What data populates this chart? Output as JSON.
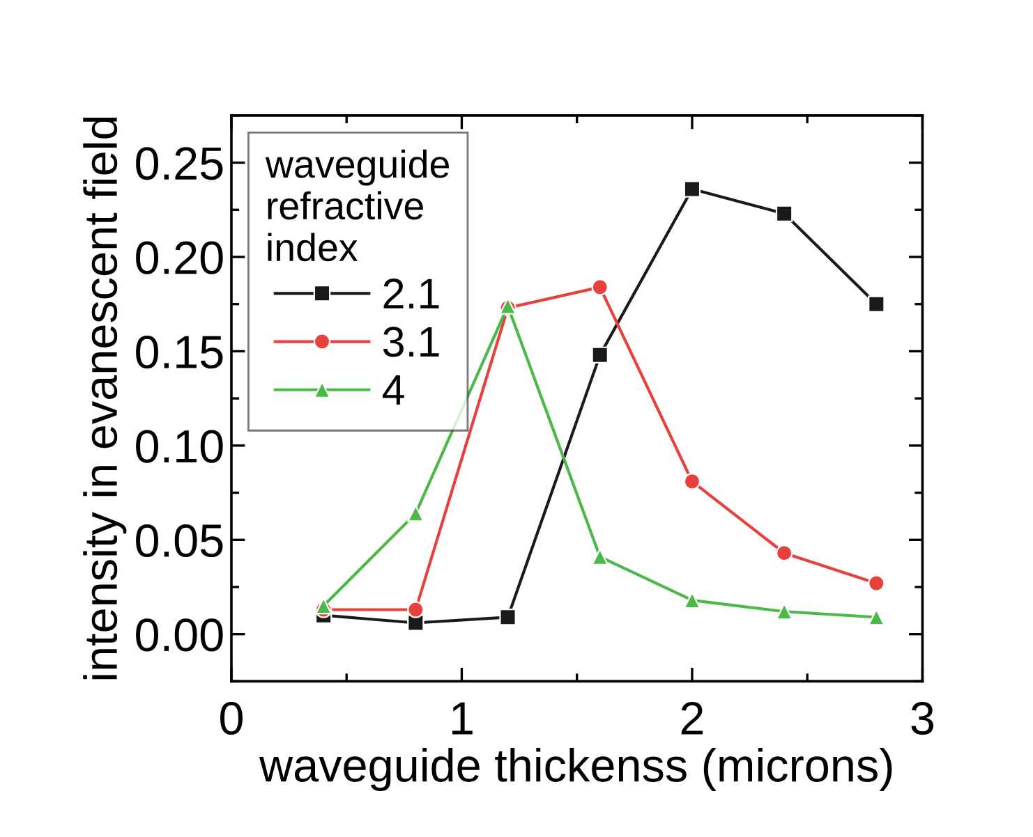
{
  "chart_data": {
    "type": "line",
    "xlabel": "waveguide thickenss (microns)",
    "ylabel": "intensity in evanescent field",
    "legend_title": "waveguide\nrefractive\nindex",
    "legend": "top left",
    "grid": false,
    "line_style": "solid",
    "x": [
      0.4,
      0.8,
      1.2,
      1.6,
      2.0,
      2.4,
      2.8
    ],
    "xlim": [
      0,
      3
    ],
    "xticks": [
      0,
      1,
      2,
      3
    ],
    "ylim": [
      -0.025,
      0.275
    ],
    "yticks": [
      {
        "value": 0,
        "label": "0.00"
      },
      {
        "value": 0.05,
        "label": "0.05"
      },
      {
        "value": 0.1,
        "label": "0.10"
      },
      {
        "value": 0.15,
        "label": "0.15"
      },
      {
        "value": 0.2,
        "label": "0.20"
      },
      {
        "value": 0.25,
        "label": "0.25"
      }
    ],
    "series": [
      {
        "name": "2.1",
        "color": "#1a1a1a",
        "marker": "square",
        "values": [
          0.01,
          0.006,
          0.009,
          0.148,
          0.236,
          0.223,
          0.175
        ]
      },
      {
        "name": "3.1",
        "color": "#e8403a",
        "marker": "circle",
        "values": [
          0.013,
          0.013,
          0.173,
          0.184,
          0.081,
          0.043,
          0.027
        ]
      },
      {
        "name": "4",
        "color": "#4cb848",
        "marker": "triangle",
        "values": [
          0.015,
          0.064,
          0.174,
          0.041,
          0.018,
          0.012,
          0.009
        ]
      }
    ]
  }
}
